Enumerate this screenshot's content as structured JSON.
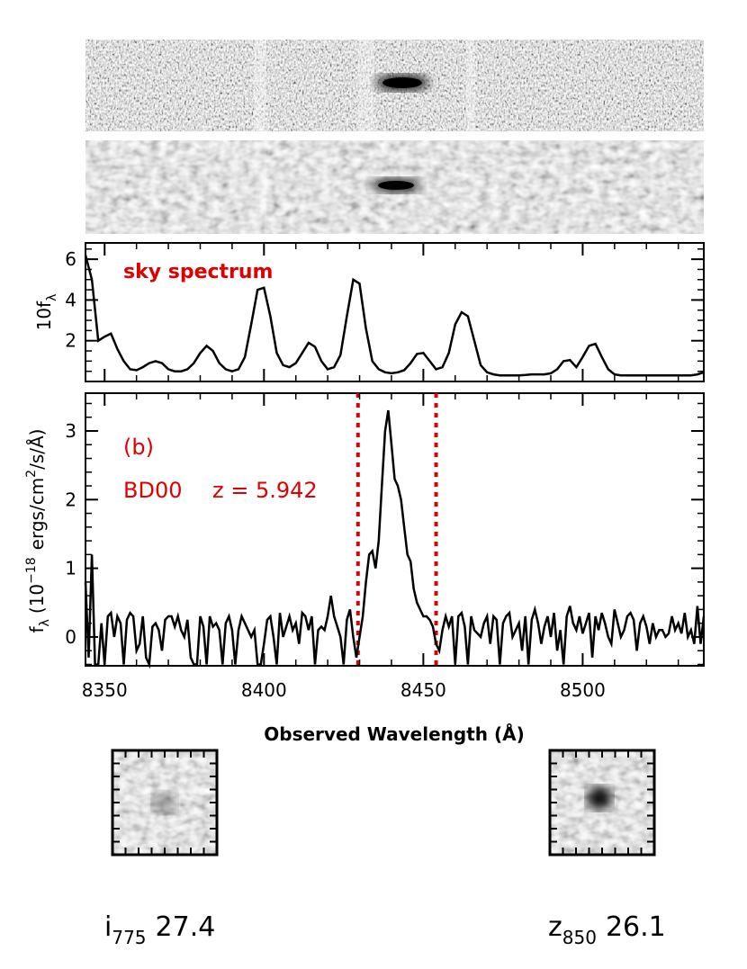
{
  "chart_data": [
    {
      "type": "line",
      "panel": "sky",
      "annotation": "sky spectrum",
      "ylabel_main": "10f",
      "ylabel_sub": "λ",
      "xlim": [
        8344,
        8538
      ],
      "ylim": [
        0,
        6.8
      ],
      "yticks": [
        2,
        4,
        6
      ],
      "x": [
        8344,
        8346,
        8348,
        8350,
        8352,
        8354,
        8356,
        8358,
        8360,
        8362,
        8364,
        8366,
        8368,
        8370,
        8372,
        8374,
        8376,
        8378,
        8380,
        8382,
        8384,
        8386,
        8388,
        8390,
        8392,
        8394,
        8396,
        8398,
        8400,
        8402,
        8404,
        8406,
        8408,
        8410,
        8412,
        8414,
        8416,
        8418,
        8420,
        8422,
        8424,
        8426,
        8428,
        8430,
        8432,
        8434,
        8436,
        8438,
        8440,
        8442,
        8444,
        8446,
        8448,
        8450,
        8452,
        8454,
        8456,
        8458,
        8460,
        8462,
        8464,
        8466,
        8468,
        8470,
        8472,
        8474,
        8476,
        8478,
        8480,
        8482,
        8484,
        8486,
        8488,
        8490,
        8492,
        8494,
        8496,
        8498,
        8500,
        8502,
        8504,
        8506,
        8508,
        8510,
        8512,
        8514,
        8516,
        8518,
        8520,
        8522,
        8524,
        8526,
        8528,
        8530,
        8532,
        8534,
        8536,
        8538
      ],
      "y": [
        6.2,
        5.0,
        2.0,
        2.2,
        2.35,
        1.6,
        1.0,
        0.6,
        0.55,
        0.7,
        0.9,
        1.0,
        0.9,
        0.6,
        0.5,
        0.5,
        0.6,
        0.9,
        1.4,
        1.75,
        1.5,
        0.9,
        0.6,
        0.5,
        0.6,
        1.2,
        2.8,
        4.5,
        4.6,
        3.2,
        1.4,
        0.8,
        0.7,
        0.9,
        1.4,
        1.9,
        1.7,
        1.0,
        0.6,
        0.7,
        1.3,
        3.2,
        5.0,
        4.8,
        2.6,
        1.0,
        0.6,
        0.45,
        0.4,
        0.45,
        0.55,
        0.9,
        1.35,
        1.4,
        1.0,
        0.6,
        0.7,
        1.4,
        2.8,
        3.4,
        3.2,
        2.0,
        0.8,
        0.45,
        0.35,
        0.3,
        0.3,
        0.3,
        0.3,
        0.32,
        0.35,
        0.35,
        0.35,
        0.4,
        0.6,
        1.0,
        1.05,
        0.7,
        1.2,
        1.75,
        1.85,
        1.2,
        0.6,
        0.35,
        0.3,
        0.3,
        0.3,
        0.3,
        0.3,
        0.3,
        0.3,
        0.3,
        0.3,
        0.3,
        0.3,
        0.3,
        0.35,
        0.45
      ]
    },
    {
      "type": "line",
      "panel": "object",
      "annotation_label": "(b)",
      "annotation_object": "BD00",
      "annotation_z": "z = 5.942",
      "ylabel_main": "f",
      "ylabel_sub": "λ",
      "ylabel_rest": "(10",
      "ylabel_exp": "−18",
      "ylabel_unit": "ergs/cm",
      "ylabel_unit_exp": "2",
      "ylabel_unit_tail": "/s/Å)",
      "xlabel": "Observed Wavelength (Å)",
      "xlim": [
        8344,
        8538
      ],
      "ylim": [
        -0.42,
        3.55
      ],
      "yticks": [
        0,
        1,
        2,
        3
      ],
      "xticks": [
        8350,
        8400,
        8450,
        8500
      ],
      "vlines": [
        8429.5,
        8454
      ],
      "x": [
        8344,
        8345,
        8346,
        8347,
        8348,
        8349,
        8350,
        8351,
        8352,
        8353,
        8354,
        8355,
        8356,
        8357,
        8358,
        8359,
        8360,
        8361,
        8362,
        8363,
        8364,
        8365,
        8366,
        8367,
        8368,
        8369,
        8370,
        8371,
        8372,
        8373,
        8374,
        8375,
        8376,
        8377,
        8378,
        8379,
        8380,
        8381,
        8382,
        8383,
        8384,
        8385,
        8386,
        8387,
        8388,
        8389,
        8390,
        8391,
        8392,
        8393,
        8394,
        8395,
        8396,
        8397,
        8398,
        8399,
        8400,
        8401,
        8402,
        8403,
        8404,
        8405,
        8406,
        8407,
        8408,
        8409,
        8410,
        8411,
        8412,
        8413,
        8414,
        8415,
        8416,
        8417,
        8418,
        8419,
        8420,
        8421,
        8422,
        8423,
        8424,
        8425,
        8426,
        8427,
        8428,
        8429,
        8430,
        8431,
        8432,
        8433,
        8434,
        8435,
        8436,
        8437,
        8438,
        8439,
        8440,
        8441,
        8442,
        8443,
        8444,
        8445,
        8446,
        8447,
        8448,
        8449,
        8450,
        8451,
        8452,
        8453,
        8454,
        8455,
        8456,
        8457,
        8458,
        8459,
        8460,
        8461,
        8462,
        8463,
        8464,
        8465,
        8466,
        8467,
        8468,
        8469,
        8470,
        8471,
        8472,
        8473,
        8474,
        8475,
        8476,
        8477,
        8478,
        8479,
        8480,
        8481,
        8482,
        8483,
        8484,
        8485,
        8486,
        8487,
        8488,
        8489,
        8490,
        8491,
        8492,
        8493,
        8494,
        8495,
        8496,
        8497,
        8498,
        8499,
        8500,
        8501,
        8502,
        8503,
        8504,
        8505,
        8506,
        8507,
        8508,
        8509,
        8510,
        8511,
        8512,
        8513,
        8514,
        8515,
        8516,
        8517,
        8518,
        8519,
        8520,
        8521,
        8522,
        8523,
        8524,
        8525,
        8526,
        8527,
        8528,
        8529,
        8530,
        8531,
        8532,
        8533,
        8534,
        8535,
        8536,
        8537,
        8538
      ],
      "y": [
        0.8,
        -0.3,
        1.2,
        -0.4,
        -0.4,
        0.2,
        -0.4,
        0.3,
        0.35,
        0.0,
        0.3,
        0.2,
        -0.4,
        0.25,
        0.35,
        0.3,
        -0.2,
        -0.1,
        0.3,
        -0.3,
        -0.4,
        0.15,
        0.2,
        0.1,
        -0.2,
        0.25,
        0.3,
        0.3,
        0.15,
        0.3,
        0.1,
        0.0,
        0.25,
        -0.3,
        -0.4,
        -0.4,
        0.3,
        0.15,
        -0.4,
        0.3,
        0.15,
        0.2,
        0.1,
        -0.4,
        0.2,
        0.3,
        0.1,
        -0.4,
        0.1,
        0.3,
        0.2,
        0.1,
        0.0,
        0.1,
        -0.4,
        -0.4,
        -0.1,
        0.25,
        0.3,
        0.0,
        -0.4,
        0.35,
        0.0,
        0.15,
        0.3,
        0.1,
        0.2,
        -0.1,
        0.35,
        0.3,
        0.1,
        0.3,
        -0.4,
        0.1,
        0.15,
        0.1,
        0.3,
        0.6,
        0.3,
        0.15,
        0.0,
        -0.4,
        0.25,
        0.4,
        0.0,
        -0.3,
        0.0,
        0.3,
        0.8,
        1.2,
        1.25,
        1.0,
        1.4,
        2.2,
        3.0,
        3.3,
        2.8,
        2.3,
        2.2,
        2.0,
        1.6,
        1.2,
        1.1,
        0.7,
        0.5,
        0.4,
        0.3,
        0.3,
        0.25,
        0.15,
        -0.1,
        -0.2,
        0.1,
        0.3,
        0.15,
        0.3,
        -0.4,
        0.3,
        0.35,
        0.15,
        -0.4,
        0.3,
        0.1,
        0.05,
        0.0,
        0.2,
        0.3,
        -0.1,
        0.3,
        0.25,
        -0.4,
        0.2,
        0.3,
        0.35,
        0.0,
        0.1,
        0.2,
        -0.2,
        0.3,
        -0.4,
        0.25,
        0.4,
        0.2,
        -0.1,
        0.15,
        0.3,
        0.0,
        0.35,
        -0.2,
        0.1,
        -0.4,
        0.3,
        0.45,
        0.2,
        0.1,
        0.3,
        0.05,
        0.2,
        0.35,
        -0.3,
        0.3,
        0.1,
        0.35,
        0.2,
        0.0,
        -0.1,
        0.4,
        0.2,
        0.0,
        0.1,
        0.3,
        0.35,
        0.25,
        -0.2,
        0.2,
        0.3,
        0.15,
        -0.1,
        0.2,
        0.0,
        0.1,
        0.1,
        0.0,
        0.05,
        0.3,
        0.1,
        0.2,
        0.05,
        0.35,
        0.0,
        0.1,
        -0.1,
        0.45,
        -0.1,
        0.3
      ]
    }
  ],
  "thumbnails": [
    {
      "band": "i",
      "band_sub": "775",
      "mag": "27.4",
      "spot_strength": 0.35
    },
    {
      "band": "z",
      "band_sub": "850",
      "mag": "26.1",
      "spot_strength": 0.95
    }
  ],
  "colors": {
    "annotation": "#e00000",
    "line": "#000000"
  }
}
